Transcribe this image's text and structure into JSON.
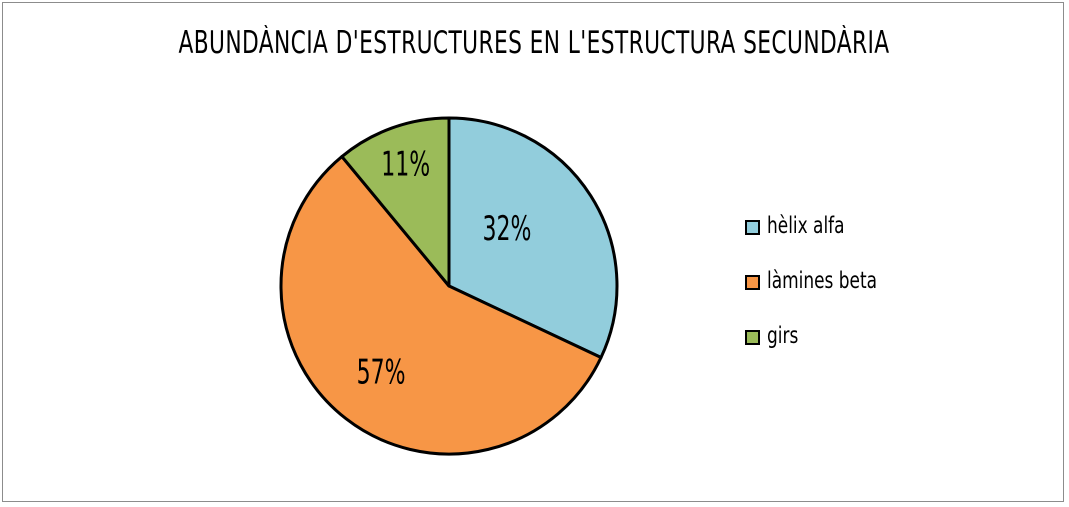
{
  "chart_data": {
    "type": "pie",
    "title": "ABUNDÀNCIA D'ESTRUCTURES EN L'ESTRUCTURA SECUNDÀRIA",
    "legend_position": "right",
    "slices": [
      {
        "label": "hèlix alfa",
        "value": 32,
        "value_label": "32%",
        "color": "#92cddc"
      },
      {
        "label": "làmines beta",
        "value": 57,
        "value_label": "57%",
        "color": "#f79646"
      },
      {
        "label": "girs",
        "value": 11,
        "value_label": "11%",
        "color": "#9bbb59"
      }
    ]
  }
}
